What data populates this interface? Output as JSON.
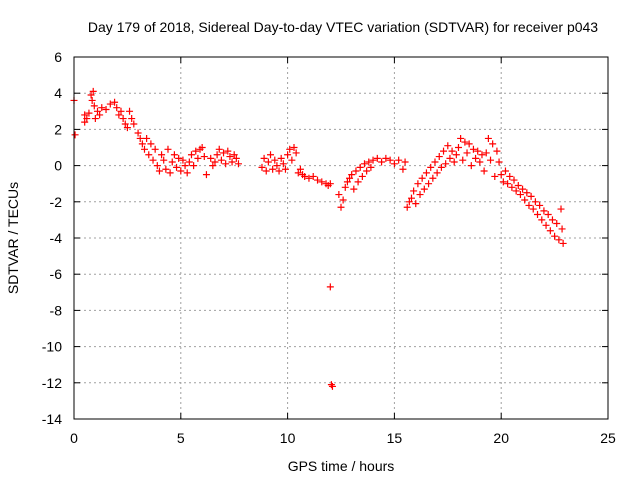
{
  "chart_data": {
    "type": "scatter",
    "title": "Day 179 of 2018, Sidereal Day-to-day VTEC variation (SDTVAR) for receiver p043",
    "xlabel": "GPS time / hours",
    "ylabel": "SDTVAR / TECUs",
    "xlim": [
      0,
      25
    ],
    "ylim": [
      -14,
      6
    ],
    "xticks": [
      0,
      5,
      10,
      15,
      20,
      25
    ],
    "yticks": [
      -14,
      -12,
      -10,
      -8,
      -6,
      -4,
      -2,
      0,
      2,
      4,
      6
    ],
    "x_tick_labels": [
      "0",
      "5",
      "10",
      "15",
      "20",
      "25"
    ],
    "y_tick_labels": [
      "-14",
      "-12",
      "-10",
      "-8",
      "-6",
      "-4",
      "-2",
      "0",
      "2",
      "4",
      "6"
    ],
    "grid": true,
    "marker": "+",
    "color": "#ff0000",
    "series": [
      {
        "name": "SDTVAR",
        "points": [
          [
            0.0,
            3.6
          ],
          [
            0.05,
            1.7
          ],
          [
            0.5,
            2.4
          ],
          [
            0.5,
            2.8
          ],
          [
            0.6,
            2.6
          ],
          [
            0.7,
            2.9
          ],
          [
            0.8,
            3.9
          ],
          [
            0.85,
            3.6
          ],
          [
            0.9,
            4.1
          ],
          [
            0.95,
            3.3
          ],
          [
            1.0,
            2.6
          ],
          [
            1.1,
            3.0
          ],
          [
            1.2,
            2.8
          ],
          [
            1.3,
            3.2
          ],
          [
            1.5,
            3.1
          ],
          [
            1.7,
            3.4
          ],
          [
            1.9,
            3.5
          ],
          [
            2.0,
            3.2
          ],
          [
            2.1,
            2.8
          ],
          [
            2.2,
            3.0
          ],
          [
            2.3,
            2.6
          ],
          [
            2.4,
            2.3
          ],
          [
            2.5,
            2.1
          ],
          [
            2.6,
            3.0
          ],
          [
            2.7,
            2.6
          ],
          [
            2.8,
            2.3
          ],
          [
            3.0,
            1.8
          ],
          [
            3.1,
            1.5
          ],
          [
            3.2,
            1.2
          ],
          [
            3.3,
            0.9
          ],
          [
            3.4,
            1.5
          ],
          [
            3.5,
            0.6
          ],
          [
            3.6,
            1.2
          ],
          [
            3.7,
            0.3
          ],
          [
            3.8,
            0.9
          ],
          [
            3.9,
            0.0
          ],
          [
            4.0,
            -0.3
          ],
          [
            4.1,
            0.6
          ],
          [
            4.2,
            0.3
          ],
          [
            4.3,
            -0.2
          ],
          [
            4.4,
            0.9
          ],
          [
            4.5,
            -0.4
          ],
          [
            4.6,
            0.2
          ],
          [
            4.7,
            0.6
          ],
          [
            4.8,
            -0.1
          ],
          [
            4.9,
            0.4
          ],
          [
            5.0,
            -0.3
          ],
          [
            5.1,
            0.3
          ],
          [
            5.2,
            0.0
          ],
          [
            5.3,
            -0.4
          ],
          [
            5.4,
            0.2
          ],
          [
            5.5,
            0.6
          ],
          [
            5.6,
            0.0
          ],
          [
            5.7,
            0.8
          ],
          [
            5.8,
            0.4
          ],
          [
            5.9,
            0.9
          ],
          [
            6.0,
            1.0
          ],
          [
            6.1,
            0.5
          ],
          [
            6.2,
            -0.5
          ],
          [
            6.4,
            0.4
          ],
          [
            6.5,
            0.0
          ],
          [
            6.6,
            0.2
          ],
          [
            6.7,
            0.6
          ],
          [
            6.8,
            0.9
          ],
          [
            6.9,
            0.3
          ],
          [
            7.0,
            0.7
          ],
          [
            7.1,
            0.1
          ],
          [
            7.2,
            0.8
          ],
          [
            7.3,
            0.5
          ],
          [
            7.4,
            0.2
          ],
          [
            7.5,
            0.6
          ],
          [
            7.6,
            0.4
          ],
          [
            7.7,
            0.1
          ],
          [
            8.8,
            -0.1
          ],
          [
            8.9,
            0.4
          ],
          [
            9.0,
            -0.3
          ],
          [
            9.1,
            0.2
          ],
          [
            9.2,
            0.6
          ],
          [
            9.3,
            -0.2
          ],
          [
            9.4,
            0.3
          ],
          [
            9.5,
            0.0
          ],
          [
            9.6,
            -0.3
          ],
          [
            9.7,
            0.4
          ],
          [
            9.8,
            0.1
          ],
          [
            9.9,
            -0.2
          ],
          [
            10.0,
            0.6
          ],
          [
            10.1,
            0.9
          ],
          [
            10.2,
            0.3
          ],
          [
            10.3,
            1.0
          ],
          [
            10.4,
            0.7
          ],
          [
            10.5,
            -0.4
          ],
          [
            10.6,
            -0.2
          ],
          [
            10.7,
            -0.5
          ],
          [
            10.8,
            -0.6
          ],
          [
            11.0,
            -0.7
          ],
          [
            11.2,
            -0.6
          ],
          [
            11.4,
            -0.8
          ],
          [
            11.6,
            -0.9
          ],
          [
            11.8,
            -1.0
          ],
          [
            11.9,
            -1.1
          ],
          [
            12.0,
            -1.0
          ],
          [
            12.0,
            -6.7
          ],
          [
            12.05,
            -12.1
          ],
          [
            12.1,
            -12.2
          ],
          [
            12.4,
            -1.6
          ],
          [
            12.5,
            -2.3
          ],
          [
            12.6,
            -1.9
          ],
          [
            12.7,
            -1.2
          ],
          [
            12.8,
            -0.9
          ],
          [
            12.9,
            -0.7
          ],
          [
            13.0,
            -0.5
          ],
          [
            13.1,
            -1.3
          ],
          [
            13.2,
            -0.3
          ],
          [
            13.3,
            -0.9
          ],
          [
            13.4,
            -0.1
          ],
          [
            13.5,
            -0.6
          ],
          [
            13.6,
            0.1
          ],
          [
            13.7,
            -0.3
          ],
          [
            13.8,
            0.2
          ],
          [
            13.9,
            -0.1
          ],
          [
            14.0,
            0.3
          ],
          [
            14.2,
            0.4
          ],
          [
            14.4,
            0.2
          ],
          [
            14.6,
            0.4
          ],
          [
            14.8,
            0.3
          ],
          [
            15.0,
            0.1
          ],
          [
            15.2,
            0.3
          ],
          [
            15.4,
            -0.2
          ],
          [
            15.5,
            0.2
          ],
          [
            15.6,
            -2.3
          ],
          [
            15.7,
            -2.0
          ],
          [
            15.8,
            -1.8
          ],
          [
            15.9,
            -1.4
          ],
          [
            16.0,
            -2.1
          ],
          [
            16.1,
            -1.0
          ],
          [
            16.2,
            -1.6
          ],
          [
            16.3,
            -0.7
          ],
          [
            16.4,
            -1.3
          ],
          [
            16.5,
            -0.4
          ],
          [
            16.6,
            -1.0
          ],
          [
            16.7,
            -0.1
          ],
          [
            16.8,
            -0.7
          ],
          [
            16.9,
            0.2
          ],
          [
            17.0,
            -0.4
          ],
          [
            17.1,
            0.5
          ],
          [
            17.2,
            -0.1
          ],
          [
            17.3,
            0.8
          ],
          [
            17.4,
            0.1
          ],
          [
            17.5,
            1.1
          ],
          [
            17.6,
            0.4
          ],
          [
            17.7,
            0.8
          ],
          [
            17.8,
            0.2
          ],
          [
            17.9,
            0.6
          ],
          [
            18.0,
            1.0
          ],
          [
            18.1,
            1.5
          ],
          [
            18.2,
            0.3
          ],
          [
            18.3,
            1.3
          ],
          [
            18.4,
            0.7
          ],
          [
            18.5,
            1.2
          ],
          [
            18.6,
            0.0
          ],
          [
            18.7,
            0.9
          ],
          [
            18.8,
            0.4
          ],
          [
            18.9,
            0.8
          ],
          [
            19.0,
            0.2
          ],
          [
            19.1,
            0.6
          ],
          [
            19.2,
            -0.3
          ],
          [
            19.3,
            0.7
          ],
          [
            19.4,
            1.5
          ],
          [
            19.5,
            0.3
          ],
          [
            19.6,
            1.2
          ],
          [
            19.7,
            -0.6
          ],
          [
            19.8,
            0.8
          ],
          [
            19.9,
            0.2
          ],
          [
            20.0,
            -0.5
          ],
          [
            20.1,
            -0.9
          ],
          [
            20.2,
            -0.3
          ],
          [
            20.3,
            -1.0
          ],
          [
            20.4,
            -0.6
          ],
          [
            20.5,
            -1.2
          ],
          [
            20.6,
            -0.8
          ],
          [
            20.7,
            -1.4
          ],
          [
            20.8,
            -1.1
          ],
          [
            20.9,
            -1.6
          ],
          [
            21.0,
            -1.3
          ],
          [
            21.1,
            -1.9
          ],
          [
            21.2,
            -1.5
          ],
          [
            21.3,
            -2.2
          ],
          [
            21.4,
            -1.7
          ],
          [
            21.5,
            -2.4
          ],
          [
            21.6,
            -2.0
          ],
          [
            21.7,
            -2.7
          ],
          [
            21.8,
            -2.2
          ],
          [
            21.9,
            -3.0
          ],
          [
            22.0,
            -2.5
          ],
          [
            22.1,
            -3.3
          ],
          [
            22.2,
            -2.7
          ],
          [
            22.3,
            -3.6
          ],
          [
            22.4,
            -3.0
          ],
          [
            22.5,
            -3.9
          ],
          [
            22.6,
            -3.2
          ],
          [
            22.7,
            -4.1
          ],
          [
            22.8,
            -2.4
          ],
          [
            22.85,
            -3.5
          ],
          [
            22.9,
            -4.3
          ]
        ]
      }
    ]
  }
}
